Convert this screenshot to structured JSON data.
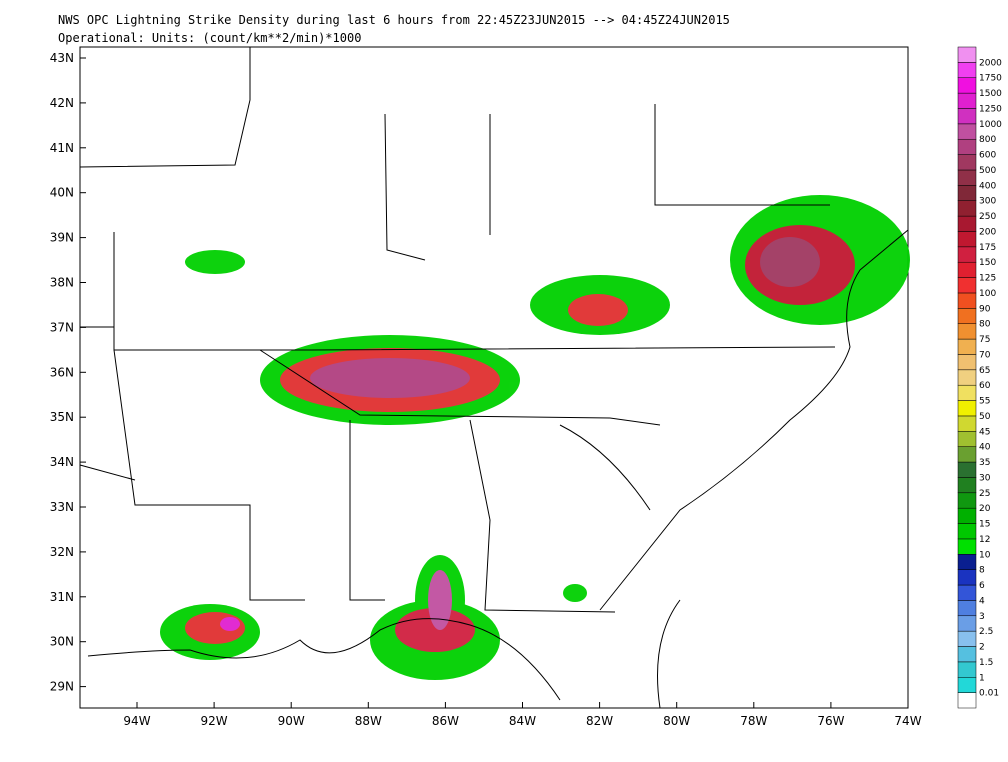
{
  "header": {
    "title": "NWS OPC Lightning Strike Density during last 6 hours from 22:45Z23JUN2015 --> 04:45Z24JUN2015",
    "subtitle": "Operational: Units: (count/km**2/min)*1000"
  },
  "map": {
    "lat_labels": [
      "43N",
      "42N",
      "41N",
      "40N",
      "39N",
      "38N",
      "37N",
      "36N",
      "35N",
      "34N",
      "33N",
      "32N",
      "31N",
      "30N",
      "29N"
    ],
    "lon_labels": [
      "94W",
      "92W",
      "90W",
      "88W",
      "86W",
      "84W",
      "82W",
      "80W",
      "78W",
      "76W",
      "74W"
    ]
  },
  "colorbar": {
    "labels": [
      "0.01",
      "1",
      "1.5",
      "2",
      "2.5",
      "3",
      "4",
      "6",
      "8",
      "10",
      "12",
      "15",
      "20",
      "25",
      "30",
      "35",
      "40",
      "45",
      "50",
      "55",
      "60",
      "65",
      "70",
      "75",
      "80",
      "90",
      "100",
      "125",
      "150",
      "175",
      "200",
      "250",
      "300",
      "400",
      "500",
      "600",
      "800",
      "1000",
      "1250",
      "1500",
      "1750",
      "2000"
    ],
    "colors": [
      "#ffffff",
      "#22d8d8",
      "#33c8d0",
      "#55c0e0",
      "#88c0ee",
      "#6a9ee6",
      "#4f7fe0",
      "#3355d8",
      "#1a33c0",
      "#0a1f90",
      "#00e000",
      "#00c800",
      "#00b000",
      "#109810",
      "#208020",
      "#2a7030",
      "#6aa030",
      "#a0c030",
      "#d0d830",
      "#f0f000",
      "#f0e060",
      "#f0d080",
      "#f0c070",
      "#f0b050",
      "#f09030",
      "#f07020",
      "#f05020",
      "#f03030",
      "#e02030",
      "#d02040",
      "#c01830",
      "#a81830",
      "#902030",
      "#802838",
      "#903048",
      "#a03860",
      "#b04080",
      "#c050a0",
      "#d030c0",
      "#e020d0",
      "#f010e0",
      "#f040f0",
      "#f090f0"
    ]
  }
}
